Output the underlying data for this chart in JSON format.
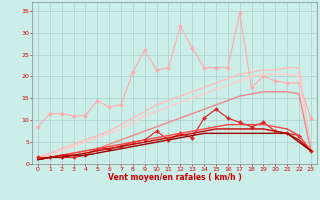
{
  "bg_color": "#cceee8",
  "grid_color": "#aacccc",
  "xlabel": "Vent moyen/en rafales ( km/h )",
  "xlabel_color": "#cc0000",
  "tick_color": "#cc0000",
  "xlim": [
    -0.5,
    23.5
  ],
  "ylim": [
    0,
    37
  ],
  "xticks": [
    0,
    1,
    2,
    3,
    4,
    5,
    6,
    7,
    8,
    9,
    10,
    11,
    12,
    13,
    14,
    15,
    16,
    17,
    18,
    19,
    20,
    21,
    22,
    23
  ],
  "yticks": [
    0,
    5,
    10,
    15,
    20,
    25,
    30,
    35
  ],
  "x": [
    0,
    1,
    2,
    3,
    4,
    5,
    6,
    7,
    8,
    9,
    10,
    11,
    12,
    13,
    14,
    15,
    16,
    17,
    18,
    19,
    20,
    21,
    22,
    23
  ],
  "lines": [
    {
      "y": [
        8.5,
        11.5,
        11.5,
        11.0,
        11.0,
        14.5,
        13.0,
        13.5,
        21.0,
        26.0,
        21.5,
        22.0,
        31.5,
        26.5,
        22.0,
        22.0,
        22.0,
        34.5,
        17.5,
        20.0,
        19.0,
        18.5,
        18.5,
        10.5
      ],
      "color": "#ffaaaa",
      "lw": 0.8,
      "marker": "D",
      "ms": 2.0
    },
    {
      "y": [
        1.5,
        2.5,
        3.5,
        4.5,
        5.5,
        6.5,
        7.5,
        9.0,
        10.5,
        12.0,
        13.5,
        14.5,
        15.5,
        16.5,
        17.5,
        18.5,
        19.5,
        20.5,
        21.0,
        21.5,
        21.5,
        22.0,
        22.0,
        3.0
      ],
      "color": "#ffbbbb",
      "lw": 1.0,
      "marker": null,
      "ms": 0
    },
    {
      "y": [
        1.5,
        2.0,
        3.0,
        4.0,
        5.0,
        6.0,
        7.0,
        8.0,
        9.5,
        11.0,
        12.0,
        13.0,
        14.0,
        15.0,
        16.0,
        17.0,
        18.0,
        19.0,
        20.0,
        20.5,
        20.5,
        20.5,
        20.0,
        3.0
      ],
      "color": "#ffcccc",
      "lw": 1.0,
      "marker": null,
      "ms": 0
    },
    {
      "y": [
        1.0,
        1.5,
        2.0,
        2.5,
        3.0,
        3.5,
        4.5,
        5.5,
        6.5,
        7.5,
        8.5,
        9.5,
        10.5,
        11.5,
        12.5,
        13.5,
        14.5,
        15.5,
        16.0,
        16.5,
        16.5,
        16.5,
        16.0,
        3.0
      ],
      "color": "#ee8888",
      "lw": 1.0,
      "marker": null,
      "ms": 0
    },
    {
      "y": [
        1.5,
        1.5,
        1.5,
        1.5,
        2.0,
        3.5,
        3.5,
        4.0,
        5.0,
        5.5,
        7.5,
        5.5,
        7.0,
        6.0,
        10.5,
        12.5,
        10.5,
        9.5,
        8.5,
        9.5,
        7.5,
        7.0,
        6.5,
        3.0
      ],
      "color": "#dd2222",
      "lw": 0.8,
      "marker": "D",
      "ms": 2.0
    },
    {
      "y": [
        1.0,
        1.5,
        2.0,
        2.5,
        3.0,
        3.5,
        4.0,
        4.5,
        5.0,
        5.5,
        6.0,
        6.5,
        7.0,
        7.5,
        8.0,
        8.5,
        9.0,
        9.0,
        9.0,
        9.0,
        8.5,
        8.0,
        6.5,
        3.0
      ],
      "color": "#ff4444",
      "lw": 1.0,
      "marker": null,
      "ms": 0
    },
    {
      "y": [
        1.0,
        1.5,
        2.0,
        2.0,
        2.5,
        3.0,
        3.5,
        4.0,
        4.5,
        5.0,
        5.5,
        6.0,
        6.5,
        7.0,
        7.5,
        8.0,
        8.0,
        8.0,
        8.0,
        8.0,
        7.5,
        7.0,
        5.5,
        3.0
      ],
      "color": "#cc0000",
      "lw": 1.0,
      "marker": null,
      "ms": 0
    },
    {
      "y": [
        1.0,
        1.5,
        1.5,
        2.0,
        2.0,
        2.5,
        3.0,
        3.5,
        4.0,
        4.5,
        5.0,
        5.5,
        6.0,
        6.5,
        7.0,
        7.0,
        7.0,
        7.0,
        7.0,
        7.0,
        7.0,
        7.0,
        5.0,
        3.0
      ],
      "color": "#990000",
      "lw": 1.0,
      "marker": null,
      "ms": 0
    }
  ]
}
